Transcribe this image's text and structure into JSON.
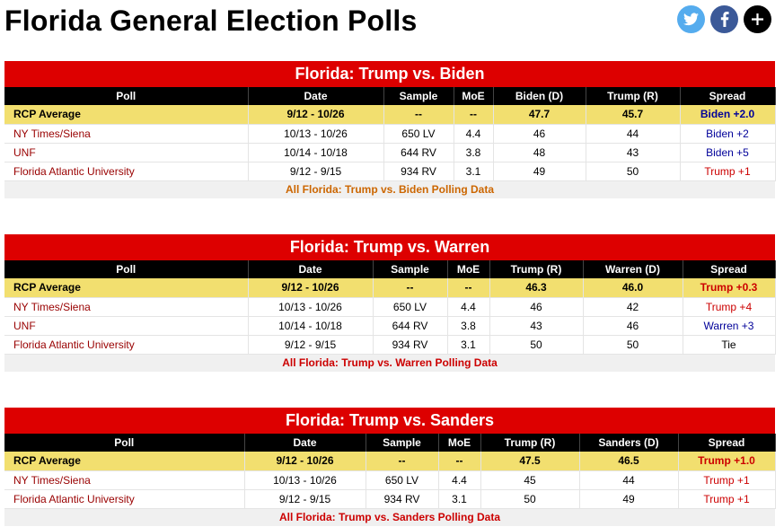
{
  "page_title": "Florida General Election Polls",
  "social": {
    "twitter": "twitter-icon",
    "facebook": "facebook-icon",
    "plus": "plus-icon"
  },
  "columns_common": {
    "poll": "Poll",
    "date": "Date",
    "sample": "Sample",
    "moe": "MoE",
    "spread": "Spread"
  },
  "tables": [
    {
      "title": "Florida: Trump vs. Biden",
      "col_a": "Biden (D)",
      "col_b": "Trump (R)",
      "rows": [
        {
          "poll": "RCP Average",
          "date": "9/12 - 10/26",
          "sample": "--",
          "moe": "--",
          "a": "47.7",
          "b": "45.7",
          "spread": "Biden +2.0",
          "spread_color": "blue"
        },
        {
          "poll": "NY Times/Siena",
          "date": "10/13 - 10/26",
          "sample": "650 LV",
          "moe": "4.4",
          "a": "46",
          "b": "44",
          "spread": "Biden +2",
          "spread_color": "blue"
        },
        {
          "poll": "UNF",
          "date": "10/14 - 10/18",
          "sample": "644 RV",
          "moe": "3.8",
          "a": "48",
          "b": "43",
          "spread": "Biden +5",
          "spread_color": "blue"
        },
        {
          "poll": "Florida Atlantic University",
          "date": "9/12 - 9/15",
          "sample": "934 RV",
          "moe": "3.1",
          "a": "49",
          "b": "50",
          "spread": "Trump +1",
          "spread_color": "red"
        }
      ],
      "footer": "All Florida: Trump vs. Biden Polling Data",
      "footer_color": "orange"
    },
    {
      "title": "Florida: Trump vs. Warren",
      "col_a": "Trump (R)",
      "col_b": "Warren (D)",
      "rows": [
        {
          "poll": "RCP Average",
          "date": "9/12 - 10/26",
          "sample": "--",
          "moe": "--",
          "a": "46.3",
          "b": "46.0",
          "spread": "Trump +0.3",
          "spread_color": "red"
        },
        {
          "poll": "NY Times/Siena",
          "date": "10/13 - 10/26",
          "sample": "650 LV",
          "moe": "4.4",
          "a": "46",
          "b": "42",
          "spread": "Trump +4",
          "spread_color": "red"
        },
        {
          "poll": "UNF",
          "date": "10/14 - 10/18",
          "sample": "644 RV",
          "moe": "3.8",
          "a": "43",
          "b": "46",
          "spread": "Warren +3",
          "spread_color": "blue"
        },
        {
          "poll": "Florida Atlantic University",
          "date": "9/12 - 9/15",
          "sample": "934 RV",
          "moe": "3.1",
          "a": "50",
          "b": "50",
          "spread": "Tie",
          "spread_color": "black"
        }
      ],
      "footer": "All Florida: Trump vs. Warren Polling Data",
      "footer_color": "red"
    },
    {
      "title": "Florida: Trump vs. Sanders",
      "col_a": "Trump (R)",
      "col_b": "Sanders (D)",
      "rows": [
        {
          "poll": "RCP Average",
          "date": "9/12 - 10/26",
          "sample": "--",
          "moe": "--",
          "a": "47.5",
          "b": "46.5",
          "spread": "Trump +1.0",
          "spread_color": "red"
        },
        {
          "poll": "NY Times/Siena",
          "date": "10/13 - 10/26",
          "sample": "650 LV",
          "moe": "4.4",
          "a": "45",
          "b": "44",
          "spread": "Trump +1",
          "spread_color": "red"
        },
        {
          "poll": "Florida Atlantic University",
          "date": "9/12 - 9/15",
          "sample": "934 RV",
          "moe": "3.1",
          "a": "50",
          "b": "49",
          "spread": "Trump +1",
          "spread_color": "red"
        }
      ],
      "footer": "All Florida: Trump vs. Sanders Polling Data",
      "footer_color": "red"
    }
  ]
}
